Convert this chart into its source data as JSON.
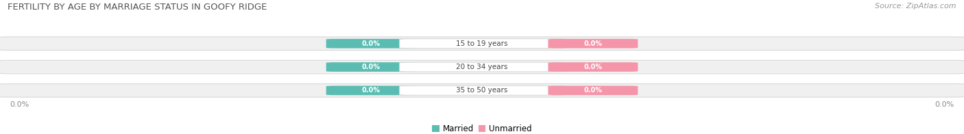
{
  "title": "FERTILITY BY AGE BY MARRIAGE STATUS IN GOOFY RIDGE",
  "source": "Source: ZipAtlas.com",
  "age_groups": [
    "15 to 19 years",
    "20 to 34 years",
    "35 to 50 years"
  ],
  "married_values": [
    0.0,
    0.0,
    0.0
  ],
  "unmarried_values": [
    0.0,
    0.0,
    0.0
  ],
  "married_color": "#5bbdb2",
  "unmarried_color": "#f495aa",
  "row_bg_color": "#f0f0f0",
  "row_edge_color": "#d8d8d8",
  "age_label_color": "#444444",
  "axis_label_color": "#888888",
  "title_color": "#555555",
  "source_color": "#999999",
  "fig_width": 14.06,
  "fig_height": 1.96,
  "dpi": 100,
  "xlim_left": -1.0,
  "xlim_right": 1.0,
  "n_rows": 3,
  "value_label": "0.0%"
}
